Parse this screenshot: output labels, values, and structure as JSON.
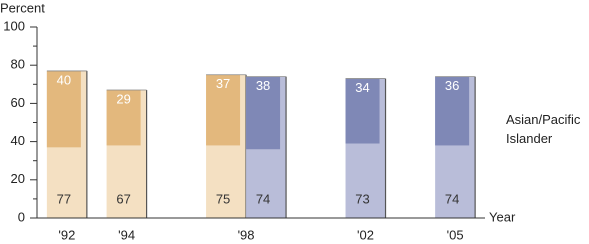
{
  "chart_data": {
    "type": "bar",
    "y_label": "Percent",
    "x_label": "Year",
    "xlim": [
      1991,
      2006
    ],
    "xticks": [
      {
        "value": 1992,
        "label": "'92"
      },
      {
        "value": 1994,
        "label": "'94"
      },
      {
        "value": 1998,
        "label": "'98"
      },
      {
        "value": 2002,
        "label": "'02"
      },
      {
        "value": 2005,
        "label": "'05"
      }
    ],
    "ylim": [
      0,
      100
    ],
    "yticks": [
      0,
      20,
      40,
      60,
      80,
      100
    ],
    "minor_yticks": [
      10,
      30,
      50,
      70,
      90
    ],
    "series": [
      {
        "x": [
          1992,
          1994,
          1998
        ],
        "values": [
          77,
          67,
          75
        ],
        "top_values": [
          40,
          29,
          37
        ],
        "color": "#f4e0c2",
        "top_color": "#e3b87d"
      },
      {
        "name": "Asian/Pacific Islander",
        "x": [
          1998,
          2002,
          2005
        ],
        "values": [
          74,
          73,
          74
        ],
        "top_values": [
          38,
          34,
          36
        ],
        "color": "#b9bdd9",
        "top_color": "#7f88b6"
      }
    ]
  }
}
